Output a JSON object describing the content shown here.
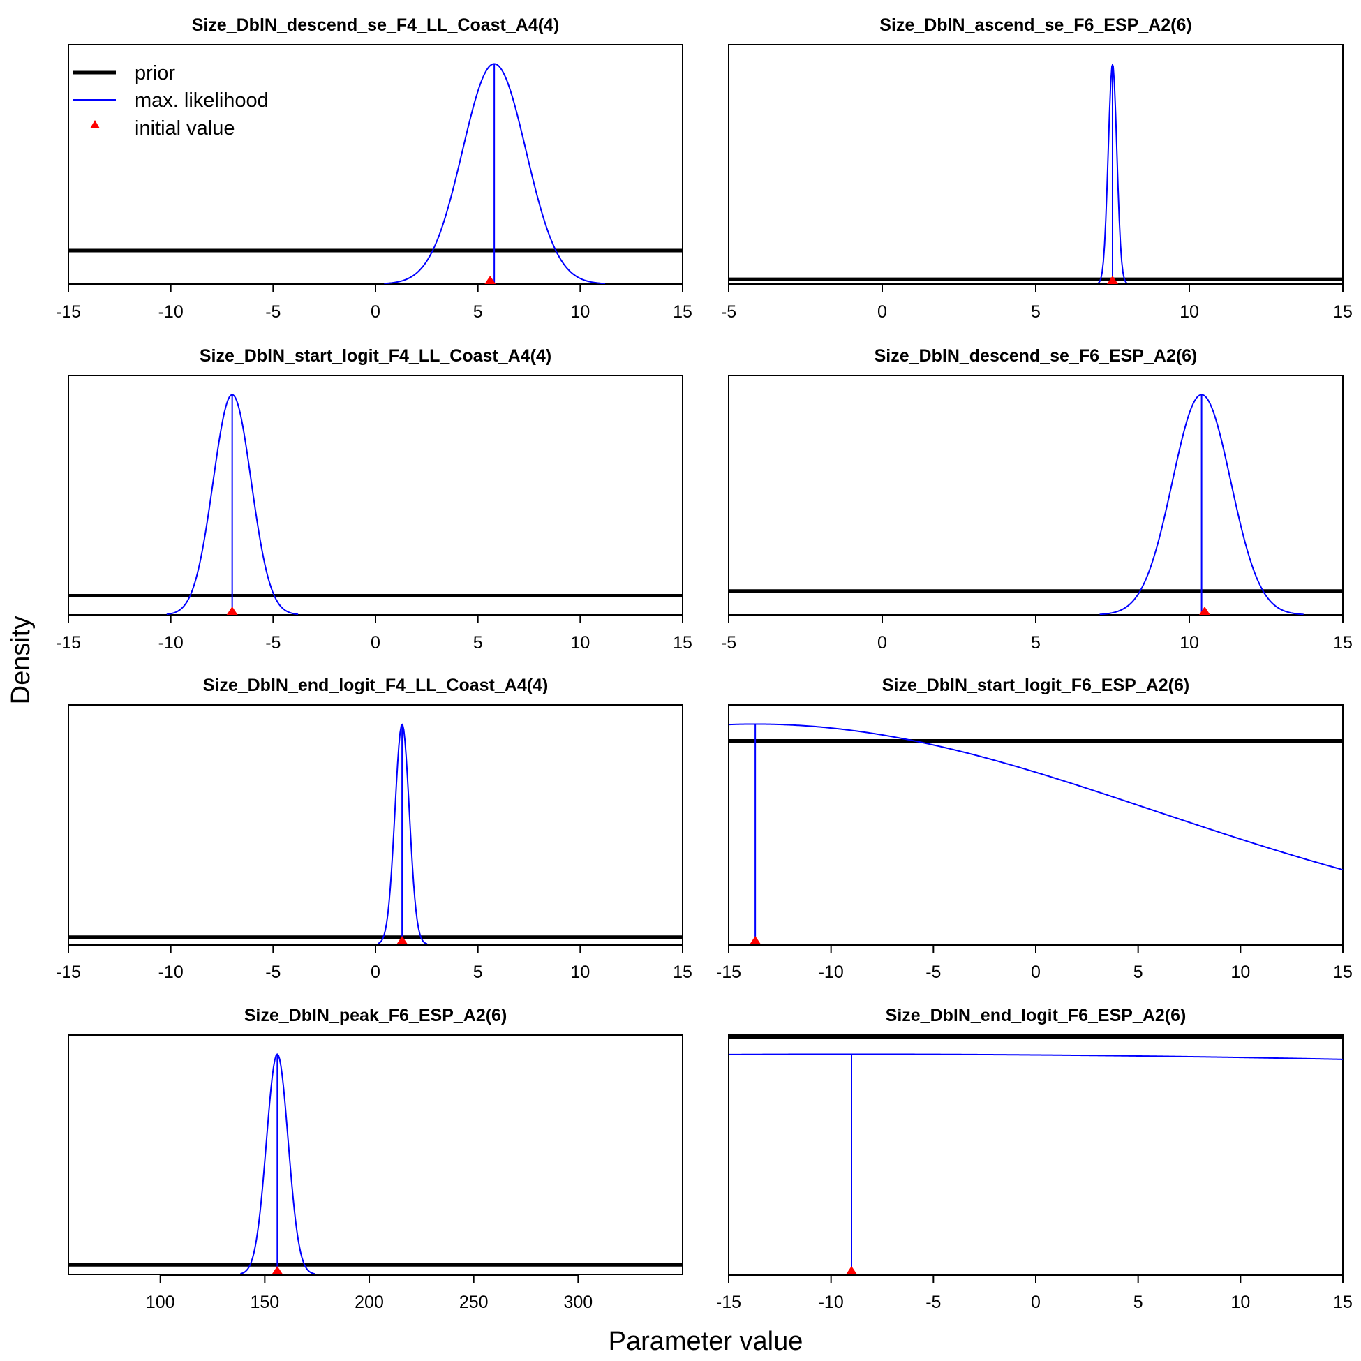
{
  "figure": {
    "xlabel": "Parameter value",
    "ylabel": "Density"
  },
  "legend": {
    "position": "top-left of first panel",
    "entries": [
      {
        "label": "prior",
        "color": "#000000",
        "style": "thick-line"
      },
      {
        "label": "max. likelihood",
        "color": "#0000ff",
        "style": "thin-line"
      },
      {
        "label": "initial value",
        "color": "#ff0000",
        "style": "triangle"
      }
    ]
  },
  "chart_data": [
    {
      "type": "line",
      "title": "Size_DblN_descend_se_F4_LL_Coast_A4(4)",
      "xlim": [
        -15,
        15
      ],
      "xticks": [
        -15,
        -10,
        -5,
        0,
        5,
        10,
        15
      ],
      "prior_level": 0.14,
      "mle": 5.8,
      "sd": 1.55,
      "initial_value": 5.6
    },
    {
      "type": "line",
      "title": "Size_DblN_ascend_se_F6_ESP_A2(6)",
      "xlim": [
        -5,
        15
      ],
      "xticks": [
        -5,
        0,
        5,
        10,
        15
      ],
      "prior_level": 0.02,
      "mle": 7.5,
      "sd": 0.14,
      "initial_value": 7.5
    },
    {
      "type": "line",
      "title": "Size_DblN_start_logit_F4_LL_Coast_A4(4)",
      "xlim": [
        -15,
        15
      ],
      "xticks": [
        -15,
        -10,
        -5,
        0,
        5,
        10,
        15
      ],
      "prior_level": 0.08,
      "mle": -7.0,
      "sd": 0.93,
      "initial_value": -7.0
    },
    {
      "type": "line",
      "title": "Size_DblN_descend_se_F6_ESP_A2(6)",
      "xlim": [
        -5,
        15
      ],
      "xticks": [
        -5,
        0,
        5,
        10,
        15
      ],
      "prior_level": 0.1,
      "mle": 10.4,
      "sd": 0.95,
      "initial_value": 10.5
    },
    {
      "type": "line",
      "title": "Size_DblN_end_logit_F4_LL_Coast_A4(4)",
      "xlim": [
        -15,
        15
      ],
      "xticks": [
        -15,
        -10,
        -5,
        0,
        5,
        10,
        15
      ],
      "prior_level": 0.03,
      "mle": 1.3,
      "sd": 0.35,
      "initial_value": 1.3
    },
    {
      "type": "line",
      "title": "Size_DblN_start_logit_F6_ESP_A2(6)",
      "xlim": [
        -15,
        15
      ],
      "xticks": [
        -15,
        -10,
        -5,
        0,
        5,
        10,
        15
      ],
      "prior_level": 0.85,
      "mle": -13.7,
      "sd": 19.5,
      "initial_value": -13.7
    },
    {
      "type": "line",
      "title": "Size_DblN_peak_F6_ESP_A2(6)",
      "xlim": [
        56,
        350
      ],
      "xticks": [
        100,
        150,
        200,
        250,
        300
      ],
      "prior_level": 0.04,
      "mle": 156,
      "sd": 5.2,
      "initial_value": 156
    },
    {
      "type": "line",
      "title": "Size_DblN_end_logit_F6_ESP_A2(6)",
      "xlim": [
        -15,
        15
      ],
      "xticks": [
        -15,
        -10,
        -5,
        0,
        5,
        10,
        15
      ],
      "prior_level": 0.99,
      "mle": -9.0,
      "sd": 110,
      "initial_value": -9.0
    }
  ]
}
